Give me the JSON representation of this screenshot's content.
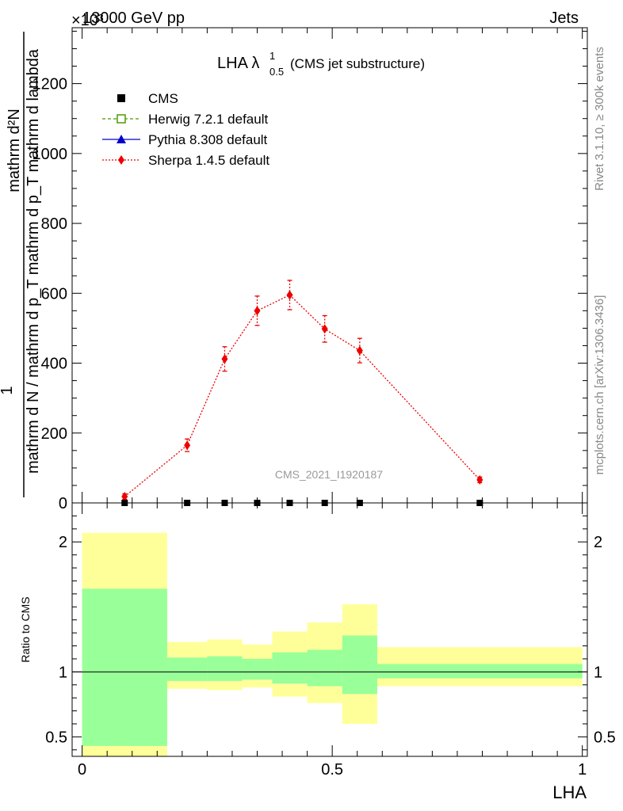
{
  "chart_data": {
    "type": "line",
    "header_left": "13000 GeV pp",
    "header_right": "Jets",
    "exponent_label": "×10³",
    "title_main": "LHA λ",
    "title_sup": "1",
    "title_sub": "0.5",
    "title_suffix": "(CMS jet substructure)",
    "ylabel_numerator": "mathrm d²N",
    "ylabel_prefactor": "1",
    "ylabel_denominator": "mathrm d N / mathrm d p_T mathrm d p_T mathrm d lambda",
    "xlabel": "LHA",
    "ratio_ylabel": "Ratio to CMS",
    "watermark": "CMS_2021_I1920187",
    "right_label_top": "Rivet 3.1.10, ≥ 300k events",
    "right_label_bottom": "mcplots.cern.ch [arXiv:1306.3436]",
    "xlim": [
      -0.02,
      1.01
    ],
    "ylim": [
      0,
      1360
    ],
    "ratio_ylim": [
      0.35,
      2.3
    ],
    "x_ticks": [
      0,
      0.5,
      1
    ],
    "x_tick_labels": [
      "0",
      "0.5",
      "1"
    ],
    "y_ticks": [
      0,
      200,
      400,
      600,
      800,
      1000,
      1200
    ],
    "y_tick_labels": [
      "0",
      "200",
      "400",
      "600",
      "800",
      "1000",
      "1200"
    ],
    "ratio_ticks": [
      0.5,
      1,
      2
    ],
    "ratio_tick_labels": [
      "0.5",
      "1",
      "2"
    ],
    "legend": [
      {
        "label": "CMS",
        "marker": "square-filled",
        "color": "#000000"
      },
      {
        "label": "Herwig 7.2.1 default",
        "marker": "square-open",
        "color": "#4c9a00"
      },
      {
        "label": "Pythia 8.308 default",
        "marker": "triangle",
        "color": "#0000cc"
      },
      {
        "label": "Sherpa 1.4.5 default",
        "marker": "diamond",
        "color": "#ee0000"
      }
    ],
    "series": [
      {
        "name": "CMS",
        "x": [
          0.085,
          0.21,
          0.285,
          0.35,
          0.415,
          0.485,
          0.555,
          0.795
        ],
        "y": [
          0,
          0,
          0,
          0,
          0,
          0,
          0,
          0
        ]
      },
      {
        "name": "Sherpa 1.4.5 default",
        "x": [
          0.085,
          0.21,
          0.285,
          0.35,
          0.415,
          0.485,
          0.555,
          0.795
        ],
        "y": [
          18,
          165,
          412,
          550,
          595,
          498,
          436,
          66
        ],
        "yerr": [
          8,
          18,
          35,
          42,
          42,
          38,
          35,
          8
        ]
      }
    ],
    "ratio_bands": [
      {
        "x0": 0.0,
        "x1": 0.17,
        "g_lo": 0.43,
        "g_hi": 1.64,
        "y_lo": 0.35,
        "y_hi": 2.07
      },
      {
        "x0": 0.17,
        "x1": 0.25,
        "g_lo": 0.93,
        "g_hi": 1.11,
        "y_lo": 0.87,
        "y_hi": 1.23
      },
      {
        "x0": 0.25,
        "x1": 0.32,
        "g_lo": 0.93,
        "g_hi": 1.12,
        "y_lo": 0.86,
        "y_hi": 1.25
      },
      {
        "x0": 0.32,
        "x1": 0.38,
        "g_lo": 0.94,
        "g_hi": 1.1,
        "y_lo": 0.88,
        "y_hi": 1.21
      },
      {
        "x0": 0.38,
        "x1": 0.45,
        "g_lo": 0.91,
        "g_hi": 1.15,
        "y_lo": 0.81,
        "y_hi": 1.31
      },
      {
        "x0": 0.45,
        "x1": 0.52,
        "g_lo": 0.89,
        "g_hi": 1.17,
        "y_lo": 0.76,
        "y_hi": 1.38
      },
      {
        "x0": 0.52,
        "x1": 0.59,
        "g_lo": 0.83,
        "g_hi": 1.28,
        "y_lo": 0.6,
        "y_hi": 1.52
      },
      {
        "x0": 0.59,
        "x1": 1.0,
        "g_lo": 0.95,
        "g_hi": 1.06,
        "y_lo": 0.89,
        "y_hi": 1.19
      }
    ],
    "colors": {
      "green_band": "#99ff99",
      "yellow_band": "#ffff99",
      "sherpa": "#ee0000",
      "cms": "#000000",
      "watermark": "#999999",
      "side_text": "#888888"
    }
  }
}
